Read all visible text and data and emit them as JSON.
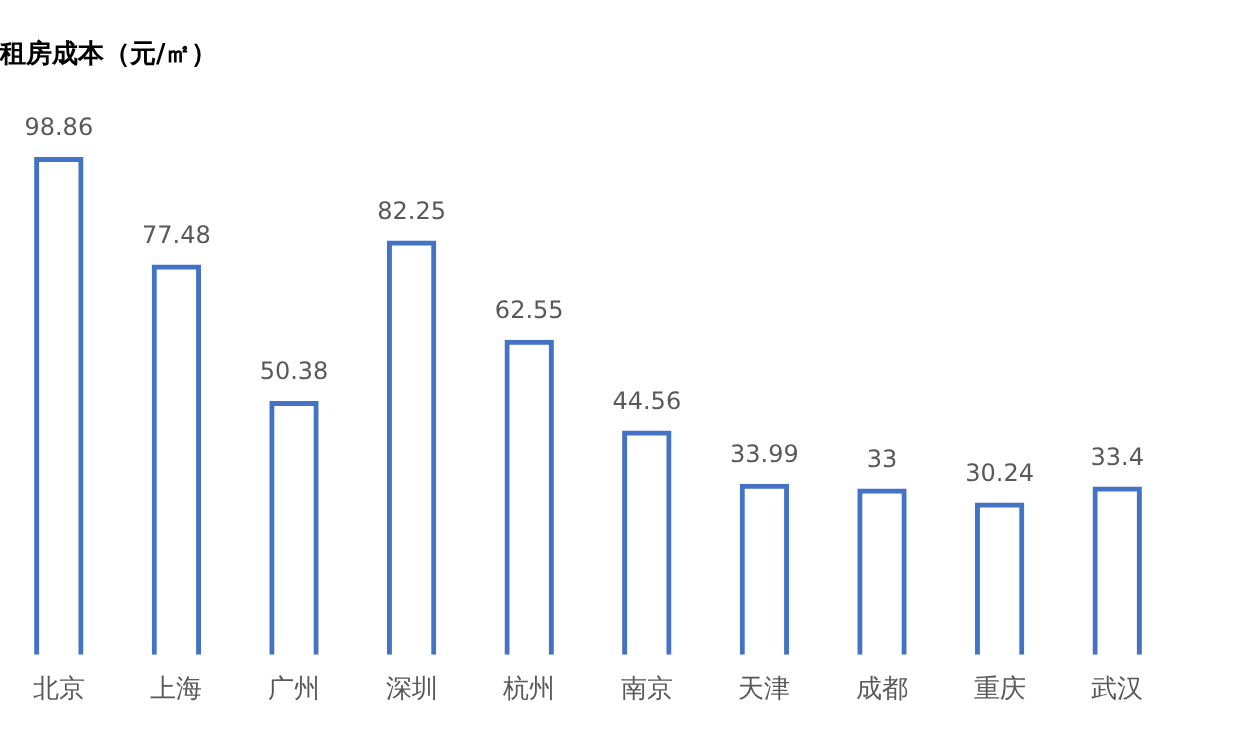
{
  "chart_data": {
    "type": "bar",
    "title": "租房成本（元/㎡）",
    "categories": [
      "北京",
      "上海",
      "广州",
      "深圳",
      "杭州",
      "南京",
      "天津",
      "成都",
      "重庆",
      "武汉"
    ],
    "values": [
      98.86,
      77.48,
      50.38,
      82.25,
      62.55,
      44.56,
      33.99,
      33,
      30.24,
      33.4
    ],
    "color": "#4472c4",
    "data_labels": true,
    "grid": false,
    "legend": false
  }
}
